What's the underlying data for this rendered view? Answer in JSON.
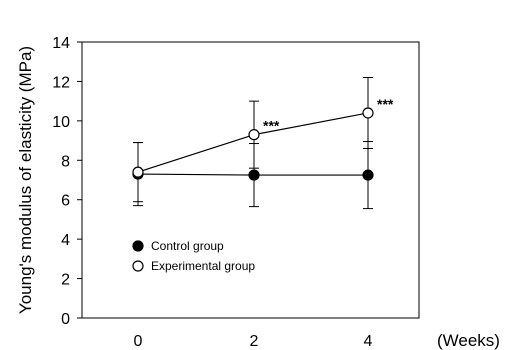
{
  "chart_data": {
    "type": "line",
    "x": [
      0,
      2,
      4
    ],
    "xlabel": "(Weeks)",
    "ylabel": "Young's modulus of elasticity (MPa)",
    "ylim": [
      0,
      14
    ],
    "yticks": [
      0,
      2,
      4,
      6,
      8,
      10,
      12,
      14
    ],
    "xticks": [
      0,
      2,
      4
    ],
    "grid": false,
    "legend": "lower-left inside",
    "series": [
      {
        "name": "Control group",
        "marker": "filled-circle",
        "color": "#000000",
        "values": [
          7.3,
          7.25,
          7.25
        ],
        "error": [
          1.6,
          1.6,
          1.7
        ]
      },
      {
        "name": "Experimental group",
        "marker": "open-circle",
        "color": "#000000",
        "values": [
          7.4,
          9.3,
          10.4
        ],
        "error": [
          1.5,
          1.7,
          1.8
        ]
      }
    ],
    "annotations": [
      {
        "x": 2,
        "text": "***"
      },
      {
        "x": 4,
        "text": "***"
      }
    ]
  }
}
